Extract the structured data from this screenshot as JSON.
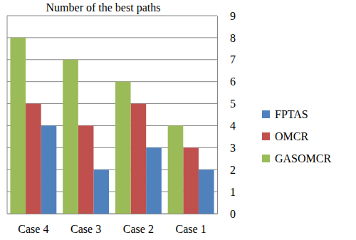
{
  "chart_data": {
    "type": "bar",
    "title": "Number of the best paths",
    "categories": [
      "Case 4",
      "Case 3",
      "Case 2",
      "Case 1"
    ],
    "series": [
      {
        "name": "FPTAS",
        "color": "#4f81bd",
        "values": [
          4,
          2,
          3,
          2
        ]
      },
      {
        "name": "OMCR",
        "color": "#c0504d",
        "values": [
          5,
          4,
          5,
          3
        ]
      },
      {
        "name": "GASOMCR",
        "color": "#9bbb59",
        "values": [
          8,
          7,
          6,
          4
        ]
      }
    ],
    "ylim": [
      0,
      9
    ],
    "yticks": [
      0,
      1,
      2,
      3,
      4,
      5,
      6,
      7,
      8,
      9
    ],
    "grid": true,
    "legend": "right"
  }
}
